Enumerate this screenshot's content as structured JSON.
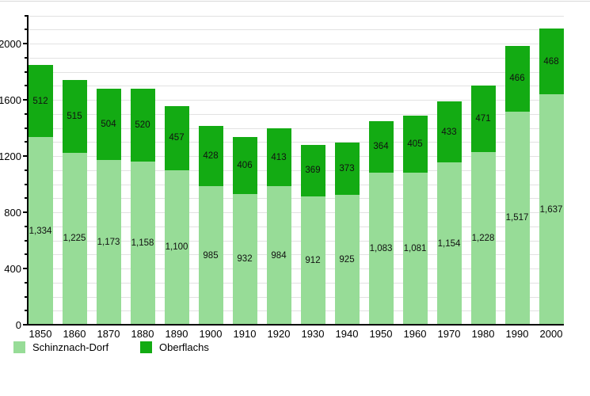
{
  "chart_data": {
    "type": "bar",
    "stacked": true,
    "categories": [
      "1850",
      "1860",
      "1870",
      "1880",
      "1890",
      "1900",
      "1910",
      "1920",
      "1930",
      "1940",
      "1950",
      "1960",
      "1970",
      "1980",
      "1990",
      "2000"
    ],
    "series": [
      {
        "name": "Schinznach-Dorf",
        "color": "#97DC97",
        "values": [
          1334,
          1225,
          1173,
          1158,
          1100,
          985,
          932,
          984,
          912,
          925,
          1083,
          1081,
          1154,
          1228,
          1517,
          1637
        ]
      },
      {
        "name": "Oberflachs",
        "color": "#13AB13",
        "values": [
          512,
          515,
          504,
          520,
          457,
          428,
          406,
          413,
          369,
          373,
          364,
          405,
          433,
          471,
          466,
          468
        ]
      }
    ],
    "ylim": [
      0,
      2200
    ],
    "y_minor_tick_interval": 100,
    "y_labeled_tick_interval": 400,
    "y_tick_labels": [
      "0",
      "400",
      "800",
      "1200",
      "1600",
      "2000"
    ],
    "grid": true,
    "legend_position": "bottom-left",
    "colors": {
      "gridline": "#e2e2e2",
      "axis": "#000000",
      "bar_label_text": "#111111",
      "background": "#ffffff"
    }
  }
}
